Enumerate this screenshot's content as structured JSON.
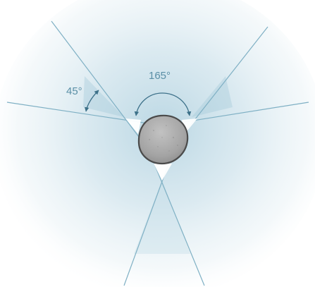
{
  "diagram": {
    "angles": [
      {
        "value": 45,
        "label": "45°"
      },
      {
        "value": 165,
        "label": "165°"
      }
    ],
    "colors": {
      "line": "#7fb0c4",
      "arrow": "#3d7189",
      "label": "#5a8fa6",
      "glow": "#cfe3ec",
      "stone_fill": "#a9a9a9",
      "stone_outline": "#4a4a4a",
      "gap_fill": "#ffffff"
    },
    "icons": {
      "center_object": "stone-icon",
      "arc_markers": "double-arrow-arc-icon"
    }
  }
}
